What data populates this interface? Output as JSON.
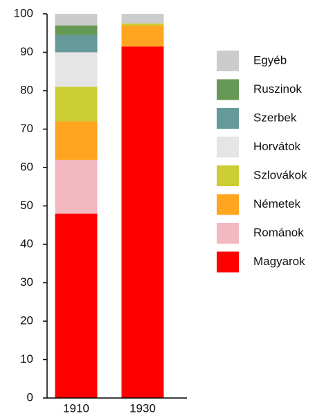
{
  "chart_data": {
    "type": "stacked_bar",
    "categories": [
      "1910",
      "1930"
    ],
    "series": [
      {
        "name": "Magyarok",
        "color": "#ff0000",
        "values": [
          48,
          91.5
        ]
      },
      {
        "name": "Románok",
        "color": "#f4b8c0",
        "values": [
          14,
          0
        ]
      },
      {
        "name": "Németek",
        "color": "#ffa51f",
        "values": [
          10,
          5.5
        ]
      },
      {
        "name": "Szlovákok",
        "color": "#cccc33",
        "values": [
          9,
          0.5
        ]
      },
      {
        "name": "Horvátok",
        "color": "#e5e5e5",
        "values": [
          9,
          0
        ]
      },
      {
        "name": "Szerbek",
        "color": "#669999",
        "values": [
          4.5,
          0
        ]
      },
      {
        "name": "Ruszinok",
        "color": "#669955",
        "values": [
          2.5,
          0
        ]
      },
      {
        "name": "Egyéb",
        "color": "#cccccc",
        "values": [
          3,
          2.5
        ]
      }
    ],
    "ylim": [
      0,
      100
    ],
    "yticks": [
      0,
      10,
      20,
      30,
      40,
      50,
      60,
      70,
      80,
      90,
      100
    ],
    "grid": false,
    "legend": "right"
  }
}
